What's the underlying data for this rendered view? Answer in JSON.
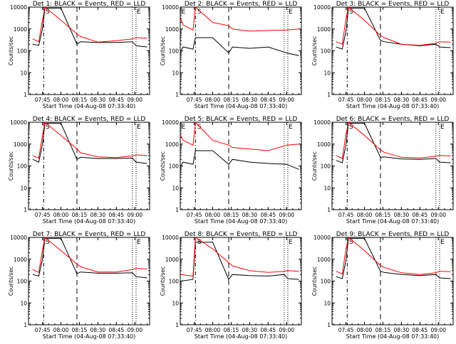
{
  "x_tick_labels": [
    "07:45",
    "08:00",
    "08:15",
    "08:30",
    "08:45",
    "09:00"
  ],
  "y_tick_labels": [
    "1",
    "10",
    "100",
    "1000",
    "10000"
  ],
  "xlabel": "Start Time (04-Aug-08 07:33:40)",
  "ylabel": "Counts/sec",
  "series_colors": {
    "events": "#000000",
    "lld": "#ff0000"
  },
  "chart_data": [
    {
      "type": "line",
      "title": "Det 1:  BLACK = Events, RED = LLD",
      "ylim": [
        1,
        10000
      ],
      "log_y": true,
      "grid": false,
      "marker_labels": [
        "S",
        "E"
      ],
      "x": [
        "07:37",
        "07:42",
        "07:45",
        "07:47",
        "08:00",
        "08:13",
        "08:16",
        "08:30",
        "08:45",
        "08:58",
        "09:01",
        "09:10"
      ],
      "series": [
        {
          "values": [
            200,
            180,
            1000,
            9000,
            9000,
            200,
            260,
            240,
            240,
            260,
            170,
            150
          ]
        },
        {
          "values": [
            350,
            260,
            2500,
            10000,
            2500,
            600,
            450,
            250,
            290,
            350,
            400,
            380
          ]
        }
      ]
    },
    {
      "type": "line",
      "title": "Det 2:  BLACK = Events, RED = LLD",
      "ylim": [
        1,
        10000
      ],
      "log_y": true,
      "grid": false,
      "marker_labels": [
        "E",
        "S",
        "E"
      ],
      "x": [
        "07:34",
        "07:36",
        "07:44",
        "07:46",
        "08:00",
        "08:13",
        "08:16",
        "08:30",
        "08:45",
        "09:00",
        "09:10"
      ],
      "series": [
        {
          "values": [
            100,
            150,
            120,
            400,
            400,
            80,
            150,
            130,
            150,
            80,
            60
          ]
        },
        {
          "values": [
            3000,
            1500,
            900,
            10000,
            2000,
            1400,
            1000,
            800,
            850,
            900,
            1000
          ]
        }
      ]
    },
    {
      "type": "line",
      "title": "Det 3:  BLACK = Events, RED = LLD",
      "ylim": [
        1,
        10000
      ],
      "log_y": true,
      "grid": false,
      "marker_labels": [
        "S",
        "E"
      ],
      "x": [
        "07:37",
        "07:42",
        "07:45",
        "07:47",
        "08:00",
        "08:13",
        "08:16",
        "08:30",
        "08:45",
        "08:58",
        "09:01",
        "09:10"
      ],
      "series": [
        {
          "values": [
            150,
            120,
            800,
            9000,
            9000,
            300,
            260,
            200,
            170,
            200,
            150,
            140
          ]
        },
        {
          "values": [
            260,
            200,
            3000,
            10000,
            2500,
            500,
            400,
            200,
            180,
            220,
            260,
            250
          ]
        }
      ]
    },
    {
      "type": "line",
      "title": "Det 4:  BLACK = Events, RED = LLD",
      "ylim": [
        1,
        10000
      ],
      "log_y": true,
      "grid": false,
      "marker_labels": [
        "S",
        "E"
      ],
      "x": [
        "07:37",
        "07:42",
        "07:45",
        "07:47",
        "08:00",
        "08:13",
        "08:16",
        "08:30",
        "08:45",
        "08:58",
        "09:01",
        "09:10"
      ],
      "series": [
        {
          "values": [
            200,
            150,
            1000,
            9000,
            9000,
            200,
            250,
            220,
            220,
            230,
            150,
            130
          ]
        },
        {
          "values": [
            300,
            230,
            2500,
            10000,
            2500,
            600,
            400,
            260,
            240,
            290,
            320,
            300
          ]
        }
      ]
    },
    {
      "type": "line",
      "title": "Det 5:  BLACK = Events, RED = LLD",
      "ylim": [
        1,
        10000
      ],
      "log_y": true,
      "grid": false,
      "marker_labels": [
        "E",
        "S",
        "E"
      ],
      "x": [
        "07:34",
        "07:36",
        "07:44",
        "07:46",
        "08:00",
        "08:13",
        "08:16",
        "08:30",
        "08:45",
        "09:00",
        "09:10"
      ],
      "series": [
        {
          "values": [
            100,
            150,
            120,
            500,
            500,
            120,
            200,
            150,
            130,
            120,
            70
          ]
        },
        {
          "values": [
            2500,
            1500,
            900,
            10000,
            1500,
            900,
            700,
            600,
            500,
            900,
            1000
          ]
        }
      ]
    },
    {
      "type": "line",
      "title": "Det 6:  BLACK = Events, RED = LLD",
      "ylim": [
        1,
        10000
      ],
      "log_y": true,
      "grid": false,
      "marker_labels": [
        "S",
        "E"
      ],
      "x": [
        "07:37",
        "07:42",
        "07:45",
        "07:47",
        "08:00",
        "08:13",
        "08:16",
        "08:30",
        "08:45",
        "08:58",
        "09:01",
        "09:10"
      ],
      "series": [
        {
          "values": [
            180,
            140,
            900,
            9000,
            9000,
            250,
            260,
            210,
            200,
            220,
            150,
            140
          ]
        },
        {
          "values": [
            300,
            220,
            2800,
            10000,
            2500,
            550,
            420,
            250,
            230,
            280,
            300,
            290
          ]
        }
      ]
    },
    {
      "type": "line",
      "title": "Det 7:  BLACK = Events, RED = LLD",
      "ylim": [
        1,
        10000
      ],
      "log_y": true,
      "grid": false,
      "marker_labels": [
        "S",
        "E"
      ],
      "x": [
        "07:37",
        "07:42",
        "07:45",
        "07:47",
        "08:00",
        "08:13",
        "08:16",
        "08:30",
        "08:45",
        "08:58",
        "09:01",
        "09:10"
      ],
      "series": [
        {
          "values": [
            200,
            170,
            1000,
            9000,
            9000,
            220,
            260,
            230,
            230,
            240,
            160,
            140
          ]
        },
        {
          "values": [
            340,
            250,
            2600,
            10000,
            2500,
            600,
            450,
            260,
            260,
            340,
            380,
            360
          ]
        }
      ]
    },
    {
      "type": "line",
      "title": "Det 8:  BLACK = Events, RED = LLD",
      "ylim": [
        1,
        10000
      ],
      "log_y": true,
      "grid": false,
      "marker_labels": [
        "S",
        "E"
      ],
      "x": [
        "07:34",
        "07:44",
        "07:46",
        "08:00",
        "08:13",
        "08:16",
        "08:30",
        "08:45",
        "08:58",
        "09:01",
        "09:10"
      ],
      "series": [
        {
          "values": [
            100,
            120,
            6000,
            6000,
            120,
            200,
            180,
            170,
            200,
            130,
            120
          ]
        },
        {
          "values": [
            200,
            170,
            10000,
            3000,
            700,
            500,
            300,
            250,
            280,
            300,
            280
          ]
        }
      ]
    },
    {
      "type": "line",
      "title": "Det 9:  BLACK = Events, RED = LLD",
      "ylim": [
        1,
        10000
      ],
      "log_y": true,
      "grid": false,
      "marker_labels": [
        "S",
        "E"
      ],
      "x": [
        "07:37",
        "07:42",
        "07:45",
        "07:47",
        "08:00",
        "08:13",
        "08:16",
        "08:30",
        "08:45",
        "08:58",
        "09:01",
        "09:10"
      ],
      "series": [
        {
          "values": [
            160,
            130,
            900,
            9000,
            9000,
            280,
            250,
            200,
            180,
            200,
            140,
            130
          ]
        },
        {
          "values": [
            280,
            210,
            3000,
            10000,
            2500,
            520,
            420,
            240,
            200,
            240,
            280,
            270
          ]
        }
      ]
    }
  ]
}
